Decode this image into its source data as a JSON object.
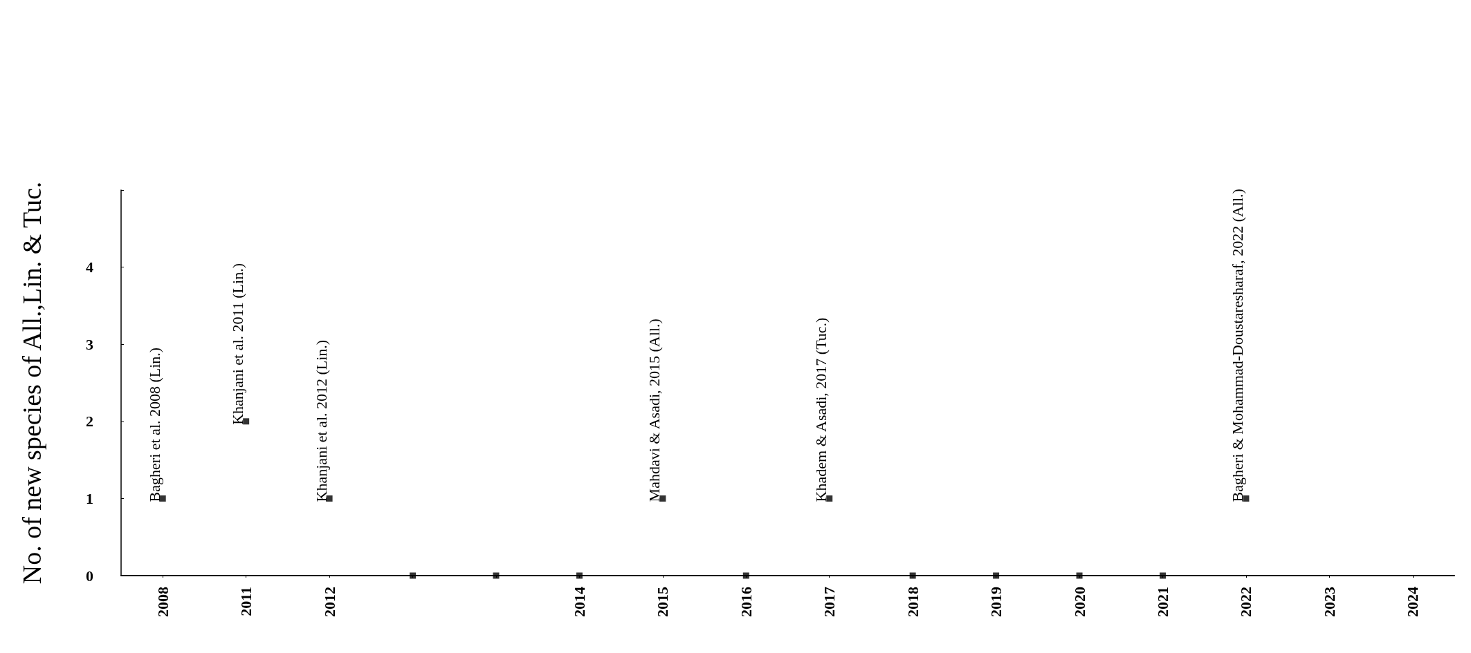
{
  "chart_data": {
    "type": "scatter",
    "ylabel": "No. of new species of All.,Lin. & Tuc.",
    "categories": [
      "2008",
      "2011",
      "2012",
      null,
      null,
      "2014",
      "2015",
      "2016",
      "2017",
      "2018",
      "2019",
      "2020",
      "2021",
      "2022",
      "2023",
      "2024"
    ],
    "values": [
      1,
      2,
      1,
      0,
      0,
      0,
      1,
      0,
      1,
      0,
      0,
      0,
      0,
      1,
      null,
      null
    ],
    "color": "#000000",
    "marker": "square",
    "grid": false,
    "ylim": [
      0,
      5
    ],
    "yticks": [
      0,
      1,
      2,
      3,
      4,
      {
        "value": 5,
        "label": null
      }
    ],
    "annotations": [
      {
        "text": "Bagheri et al. 2008 (Lin.)",
        "x": "2008",
        "y": 1
      },
      {
        "text": "Khanjani et al. 2011 (Lin.)",
        "x": "2011",
        "y": 2
      },
      {
        "text": "Khanjani et al. 2012 (Lin.)",
        "x": "2012",
        "y": 1
      },
      {
        "text": "Mahdavi & Asadi, 2015 (All.)",
        "x": "2015",
        "y": 1
      },
      {
        "text": "Khadem & Asadi, 2017 (Tuc.)",
        "x": "2017",
        "y": 1
      },
      {
        "text": "Bagheri & Mohammad-Doustaresharaf, 2022 (All.)",
        "x": "2022",
        "y": 1
      }
    ]
  }
}
